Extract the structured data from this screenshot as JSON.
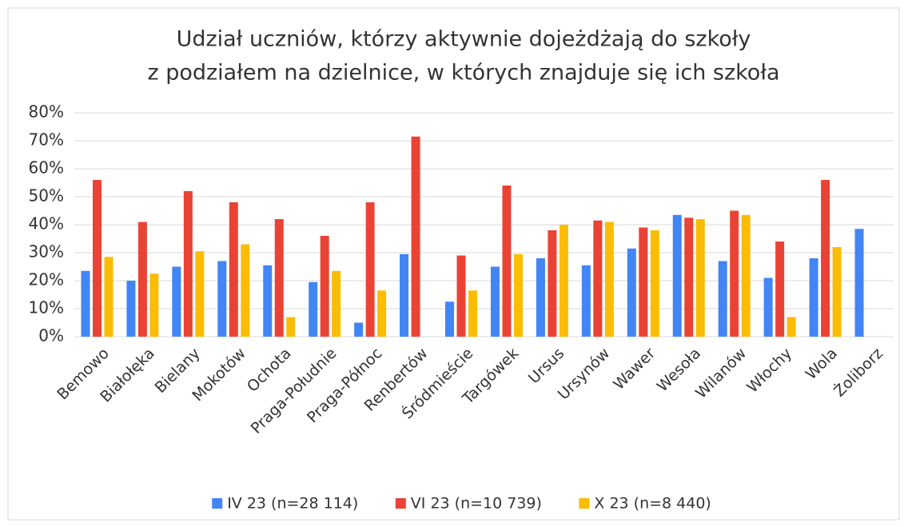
{
  "chart_data": {
    "type": "bar",
    "title": [
      "Udział uczniów, którzy aktywnie dojeżdżają do szkoły",
      "z podziałem na dzielnice, w których znajduje się ich szkoła"
    ],
    "categories": [
      "Bemowo",
      "Białołęka",
      "Bielany",
      "Mokotów",
      "Ochota",
      "Praga-Południe",
      "Praga-Północ",
      "Renbertów",
      "Śródmieście",
      "Targówek",
      "Ursus",
      "Ursynów",
      "Wawer",
      "Wesoła",
      "Wilanów",
      "Włochy",
      "Wola",
      "Żoliborz"
    ],
    "series": [
      {
        "name": "IV 23 (n=28 114)",
        "color": "#4285f4",
        "values": [
          23.5,
          20,
          25,
          27,
          25.5,
          19.5,
          5,
          29.5,
          12.5,
          25,
          28,
          25.5,
          31.5,
          43.5,
          27,
          21,
          28,
          38.5
        ]
      },
      {
        "name": "VI 23 (n=10 739)",
        "color": "#ea4335",
        "values": [
          56,
          41,
          52,
          48,
          42,
          36,
          48,
          71.5,
          29,
          54,
          38,
          41.5,
          39,
          42.5,
          45,
          34,
          56,
          null
        ]
      },
      {
        "name": "X 23 (n=8 440)",
        "color": "#fbbc04",
        "values": [
          28.5,
          22.5,
          30.5,
          33,
          7,
          23.5,
          16.5,
          null,
          16.5,
          29.5,
          40,
          41,
          38,
          42,
          43.5,
          7,
          32,
          null
        ]
      }
    ],
    "ylim": [
      0,
      80
    ],
    "yticks": [
      {
        "value": 0,
        "label": "0%"
      },
      {
        "value": 10,
        "label": "10%"
      },
      {
        "value": 20,
        "label": "20%"
      },
      {
        "value": 30,
        "label": "30%"
      },
      {
        "value": 40,
        "label": "40%"
      },
      {
        "value": 50,
        "label": "50%"
      },
      {
        "value": 60,
        "label": "60%"
      },
      {
        "value": 70,
        "label": "70%"
      },
      {
        "value": 80,
        "label": "80%"
      }
    ],
    "grid": true,
    "legend": "bottom"
  }
}
